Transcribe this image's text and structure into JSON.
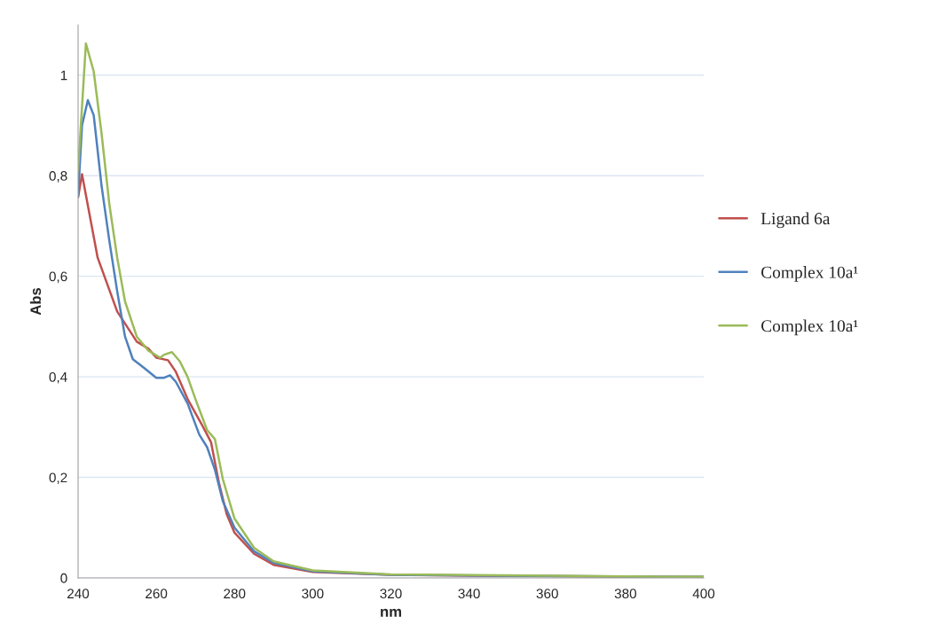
{
  "chart_data": {
    "type": "line",
    "xlabel": "nm",
    "ylabel": "Abs",
    "xlim": [
      240,
      400
    ],
    "xticks": [
      240,
      260,
      280,
      300,
      320,
      340,
      360,
      380,
      400
    ],
    "ylim": [
      0,
      1.1
    ],
    "yticks": [
      0,
      {
        "value": 0.2,
        "label": "0,2"
      },
      {
        "value": 0.4,
        "label": "0,4"
      },
      {
        "value": 0.6,
        "label": "0,6"
      },
      {
        "value": 0.8,
        "label": "0,8"
      },
      1
    ],
    "grid": "y",
    "legend": "right",
    "marker": "none",
    "line_style": "solid",
    "series": [
      {
        "name": "Ligand 6a",
        "color": "#c0504d",
        "x": [
          240,
          241,
          245,
          250,
          255,
          258,
          260,
          263,
          265,
          268,
          272,
          274,
          276,
          278,
          280,
          285,
          290,
          300,
          320,
          350,
          400
        ],
        "values": [
          0.757,
          0.803,
          0.637,
          0.53,
          0.47,
          0.456,
          0.438,
          0.433,
          0.41,
          0.356,
          0.3,
          0.27,
          0.19,
          0.127,
          0.09,
          0.048,
          0.026,
          0.012,
          0.006,
          0.004,
          0.002
        ]
      },
      {
        "name": "Complex 10a¹",
        "color": "#4f81bd",
        "x": [
          240,
          241,
          242.5,
          244,
          246,
          248,
          250,
          252,
          254,
          257,
          260,
          262,
          263.5,
          265,
          268,
          271,
          273,
          275,
          277,
          280,
          285,
          290,
          300,
          320,
          340,
          400
        ],
        "values": [
          0.76,
          0.9,
          0.95,
          0.92,
          0.78,
          0.67,
          0.57,
          0.48,
          0.435,
          0.417,
          0.398,
          0.398,
          0.403,
          0.39,
          0.347,
          0.285,
          0.26,
          0.215,
          0.153,
          0.1,
          0.053,
          0.03,
          0.013,
          0.006,
          0.005,
          0.002
        ]
      },
      {
        "name": "Complex 10a¹",
        "color": "#9bbb59",
        "x": [
          240,
          242,
          244,
          246,
          248,
          250,
          252,
          255,
          258,
          261,
          262,
          264,
          266,
          268,
          270,
          273,
          275,
          277,
          280,
          285,
          290,
          300,
          320,
          400
        ],
        "values": [
          0.81,
          1.063,
          1.007,
          0.884,
          0.743,
          0.637,
          0.55,
          0.48,
          0.452,
          0.438,
          0.444,
          0.449,
          0.431,
          0.4,
          0.356,
          0.294,
          0.276,
          0.197,
          0.118,
          0.06,
          0.033,
          0.015,
          0.007,
          0.002
        ]
      }
    ]
  }
}
